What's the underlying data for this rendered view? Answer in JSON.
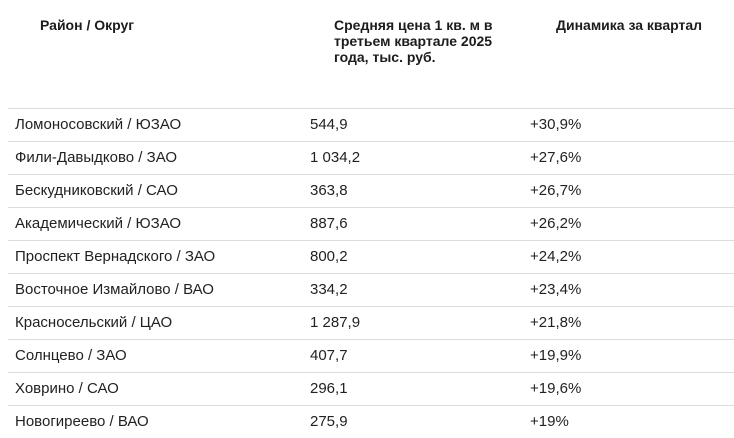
{
  "table": {
    "headers": {
      "district": "Район / Округ",
      "avg_price": "Средняя цена 1 кв. м в третьем квартале 2025 года, тыс. руб.",
      "dynamics": "Динамика за квартал"
    },
    "rows": [
      {
        "district": "Ломоносовский / ЮЗАО",
        "price": "544,9",
        "change": "+30,9%"
      },
      {
        "district": "Фили-Давыдково / ЗАО",
        "price": "1 034,2",
        "change": "+27,6%"
      },
      {
        "district": "Бескудниковский / САО",
        "price": "363,8",
        "change": "+26,7%"
      },
      {
        "district": "Академический / ЮЗАО",
        "price": "887,6",
        "change": "+26,2%"
      },
      {
        "district": "Проспект Вернадского / ЗАО",
        "price": "800,2",
        "change": "+24,2%"
      },
      {
        "district": "Восточное Измайлово / ВАО",
        "price": "334,2",
        "change": "+23,4%"
      },
      {
        "district": "Красносельский / ЦАО",
        "price": "1 287,9",
        "change": "+21,8%"
      },
      {
        "district": "Солнцево / ЗАО",
        "price": "407,7",
        "change": "+19,9%"
      },
      {
        "district": "Ховрино / САО",
        "price": "296,1",
        "change": "+19,6%"
      },
      {
        "district": "Новогиреево / ВАО",
        "price": "275,9",
        "change": "+19%"
      }
    ]
  }
}
